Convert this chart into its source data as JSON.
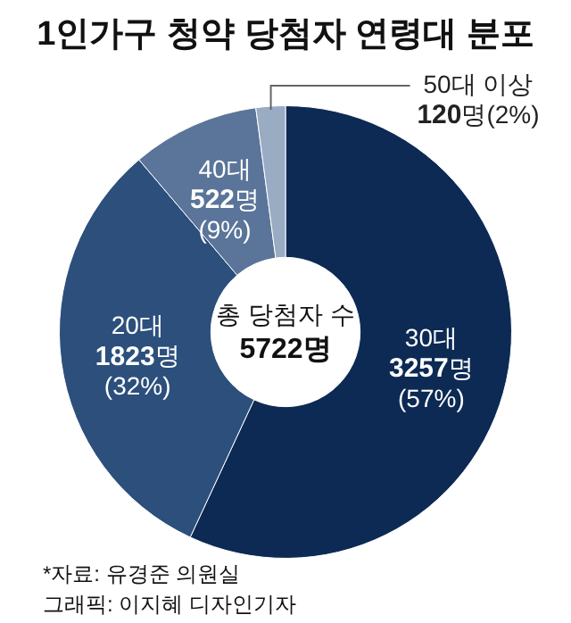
{
  "chart_data": {
    "type": "donut",
    "title": "1인가구 청약 당첨자 연령대 분포",
    "categories": [
      "30대",
      "20대",
      "40대",
      "50대 이상"
    ],
    "values": [
      3257,
      1823,
      522,
      120
    ],
    "colors": [
      "#0d2a54",
      "#2c4f7c",
      "#5a7599",
      "#9aabc4"
    ],
    "value_labels": [
      "3257명\n(57%)",
      "1823명\n(32%)",
      "522명\n(9%)",
      "120명(2%)"
    ],
    "annotations": [
      "총 당첨자 수",
      "5722명",
      "*자료: 유경준 의원실",
      "그래픽: 이지혜 디자인기자"
    ],
    "legend": false
  }
}
